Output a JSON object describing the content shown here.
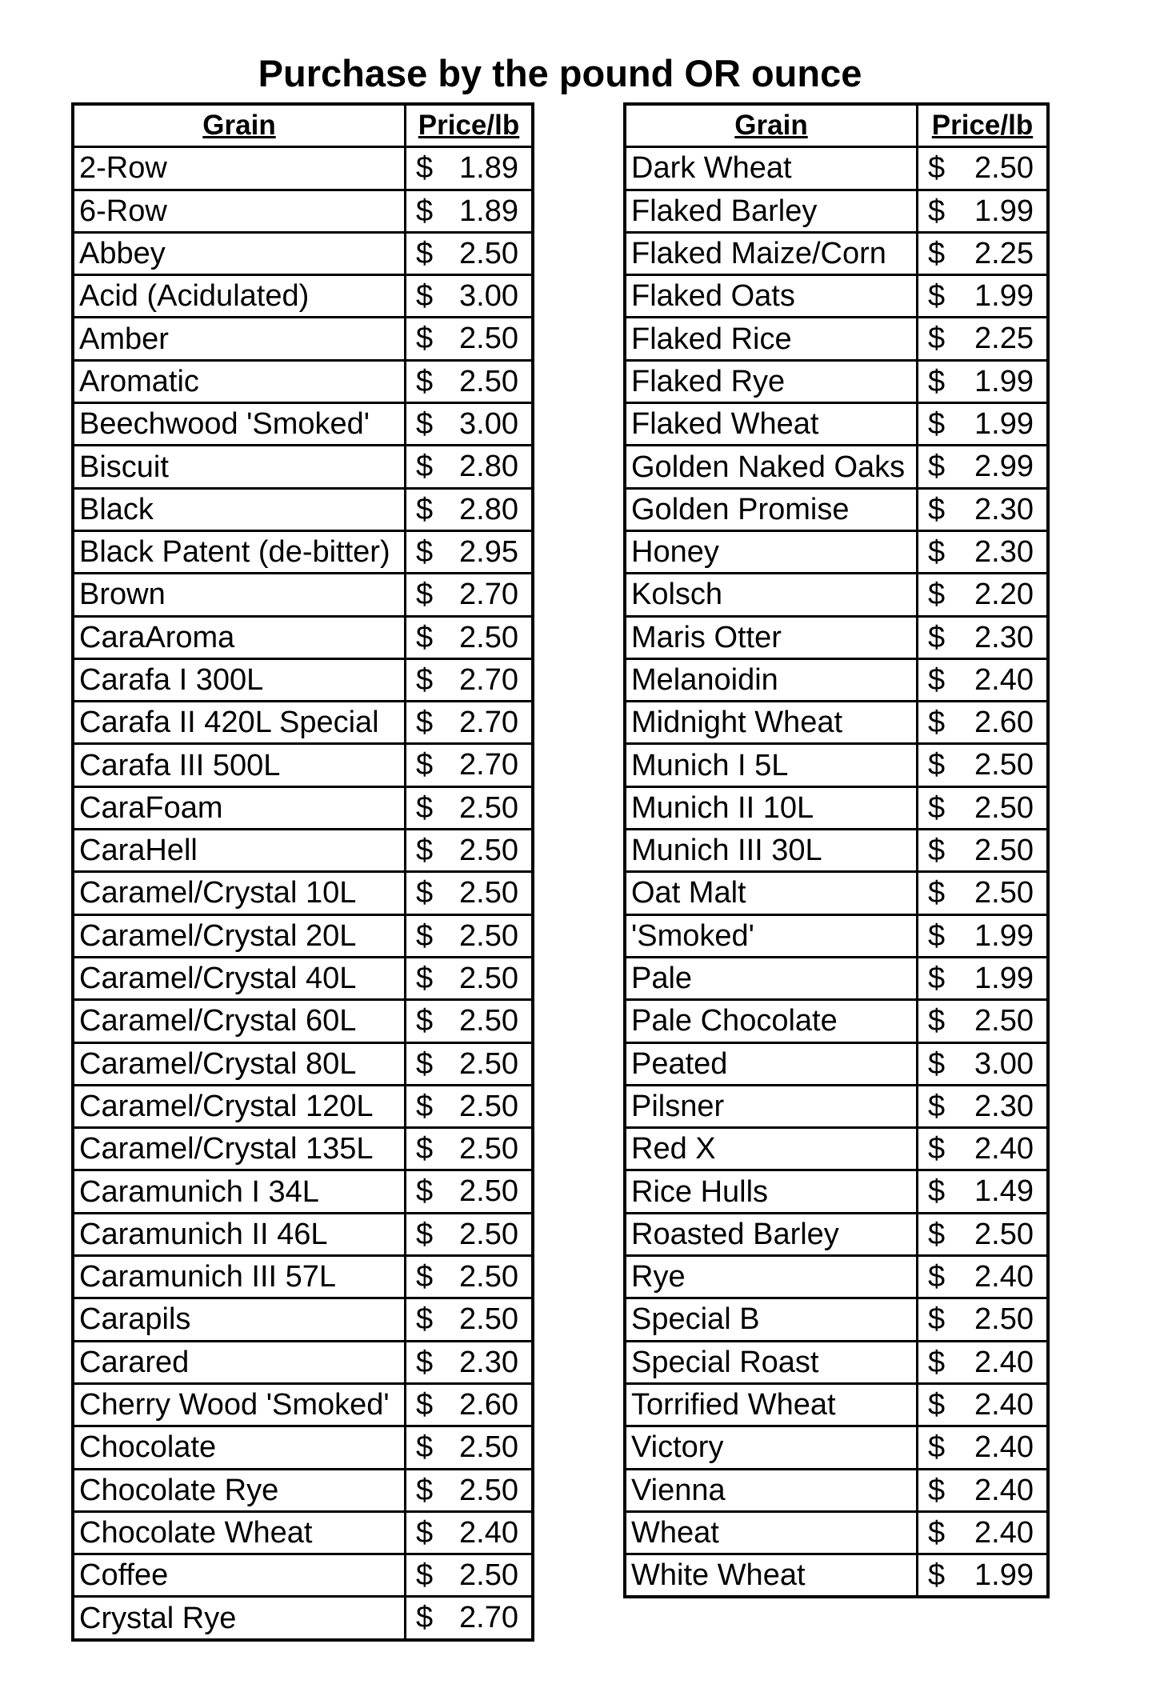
{
  "title": "Purchase by the pound OR ounce",
  "headers": {
    "grain": "Grain",
    "price": "Price/lb"
  },
  "currency": "$",
  "left_table": [
    [
      "2-Row",
      "1.89"
    ],
    [
      "6-Row",
      "1.89"
    ],
    [
      "Abbey",
      "2.50"
    ],
    [
      "Acid (Acidulated)",
      "3.00"
    ],
    [
      "Amber",
      "2.50"
    ],
    [
      "Aromatic",
      "2.50"
    ],
    [
      "Beechwood 'Smoked'",
      "3.00"
    ],
    [
      "Biscuit",
      "2.80"
    ],
    [
      "Black",
      "2.80"
    ],
    [
      "Black Patent (de-bitter)",
      "2.95"
    ],
    [
      "Brown",
      "2.70"
    ],
    [
      "CaraAroma",
      "2.50"
    ],
    [
      "Carafa I 300L",
      "2.70"
    ],
    [
      "Carafa II 420L Special",
      "2.70"
    ],
    [
      "Carafa III  500L",
      "2.70"
    ],
    [
      "CaraFoam",
      "2.50"
    ],
    [
      "CaraHell",
      "2.50"
    ],
    [
      "Caramel/Crystal 10L",
      "2.50"
    ],
    [
      "Caramel/Crystal 20L",
      "2.50"
    ],
    [
      "Caramel/Crystal 40L",
      "2.50"
    ],
    [
      "Caramel/Crystal 60L",
      "2.50"
    ],
    [
      "Caramel/Crystal 80L",
      "2.50"
    ],
    [
      "Caramel/Crystal 120L",
      "2.50"
    ],
    [
      "Caramel/Crystal 135L",
      "2.50"
    ],
    [
      "Caramunich I 34L",
      "2.50"
    ],
    [
      "Caramunich II 46L",
      "2.50"
    ],
    [
      "Caramunich III 57L",
      "2.50"
    ],
    [
      "Carapils",
      "2.50"
    ],
    [
      "Carared",
      "2.30"
    ],
    [
      "Cherry Wood 'Smoked'",
      "2.60"
    ],
    [
      "Chocolate",
      "2.50"
    ],
    [
      "Chocolate Rye",
      "2.50"
    ],
    [
      "Chocolate Wheat",
      "2.40"
    ],
    [
      "Coffee",
      "2.50"
    ],
    [
      "Crystal Rye",
      "2.70"
    ]
  ],
  "right_table": [
    [
      "Dark Wheat",
      "2.50"
    ],
    [
      "Flaked Barley",
      "1.99"
    ],
    [
      "Flaked Maize/Corn",
      "2.25"
    ],
    [
      "Flaked Oats",
      "1.99"
    ],
    [
      "Flaked Rice",
      "2.25"
    ],
    [
      "Flaked Rye",
      "1.99"
    ],
    [
      "Flaked Wheat",
      "1.99"
    ],
    [
      "Golden Naked Oaks",
      "2.99"
    ],
    [
      "Golden Promise",
      "2.30"
    ],
    [
      "Honey",
      "2.30"
    ],
    [
      "Kolsch",
      "2.20"
    ],
    [
      "Maris Otter",
      "2.30"
    ],
    [
      "Melanoidin",
      "2.40"
    ],
    [
      "Midnight Wheat",
      "2.60"
    ],
    [
      "Munich I 5L",
      "2.50"
    ],
    [
      "Munich II 10L",
      "2.50"
    ],
    [
      "Munich III 30L",
      "2.50"
    ],
    [
      "Oat Malt",
      "2.50"
    ],
    [
      "'Smoked'",
      "1.99"
    ],
    [
      "Pale",
      "1.99"
    ],
    [
      "Pale Chocolate",
      "2.50"
    ],
    [
      "Peated",
      "3.00"
    ],
    [
      "Pilsner",
      "2.30"
    ],
    [
      "Red X",
      "2.40"
    ],
    [
      "Rice Hulls",
      "1.49"
    ],
    [
      "Roasted Barley",
      "2.50"
    ],
    [
      "Rye",
      "2.40"
    ],
    [
      "Special B",
      "2.50"
    ],
    [
      "Special Roast",
      "2.40"
    ],
    [
      "Torrified Wheat",
      "2.40"
    ],
    [
      "Victory",
      "2.40"
    ],
    [
      "Vienna",
      "2.40"
    ],
    [
      "Wheat",
      "2.40"
    ],
    [
      "White Wheat",
      "1.99"
    ]
  ]
}
